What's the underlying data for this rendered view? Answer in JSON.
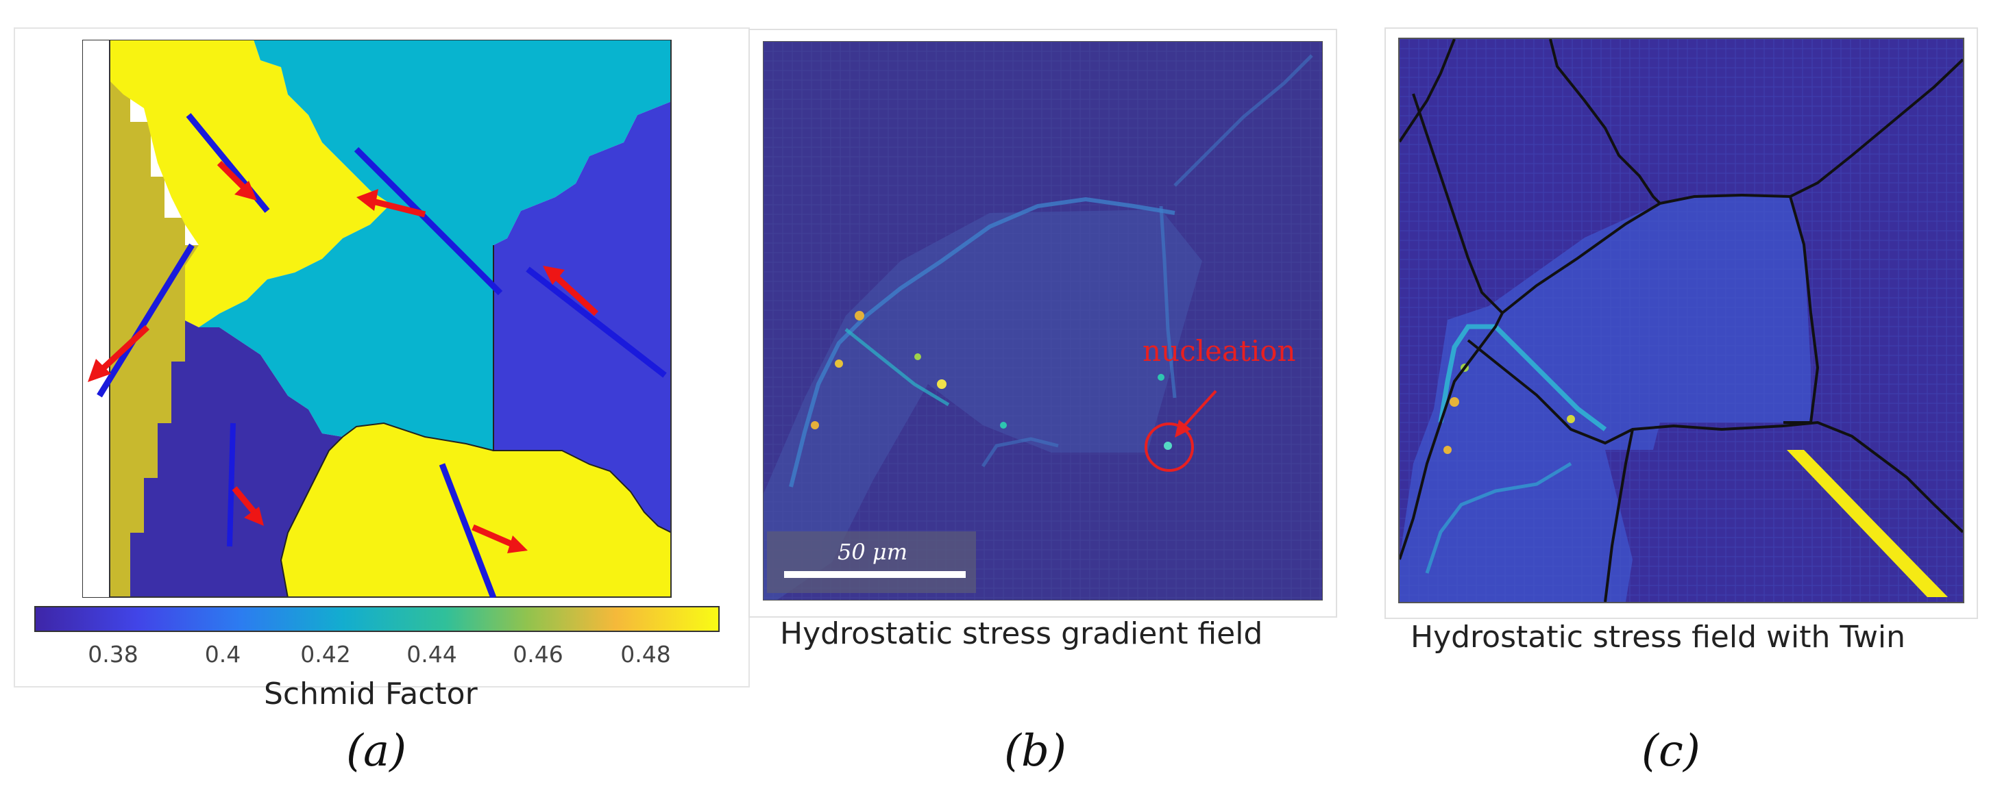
{
  "panel_a": {
    "label": "(a)",
    "colorbar_title": "Schmid Factor",
    "colorbar_ticks": [
      "0.38",
      "0.4",
      "0.42",
      "0.44",
      "0.46",
      "0.48"
    ],
    "colors": {
      "yellow": "#f8f311",
      "olive": "#c8b92e",
      "teal": "#08b4cf",
      "blue": "#3d3dd6",
      "navy": "#3b2fa8",
      "arrow": "#ee1515",
      "slip_line": "#1a1adc"
    }
  },
  "panel_b": {
    "label": "(b)",
    "caption": "Hydrostatic stress gradient field",
    "annotation": "nucleation",
    "scale_bar": "50 μm",
    "colors": {
      "background": "#3c3690",
      "annotation": "#e82020"
    }
  },
  "panel_c": {
    "label": "(c)",
    "caption": "Hydrostatic stress field with Twin",
    "colors": {
      "background": "#3a2f9c",
      "twin": "#f5ea14",
      "boundary": "#111111"
    }
  }
}
